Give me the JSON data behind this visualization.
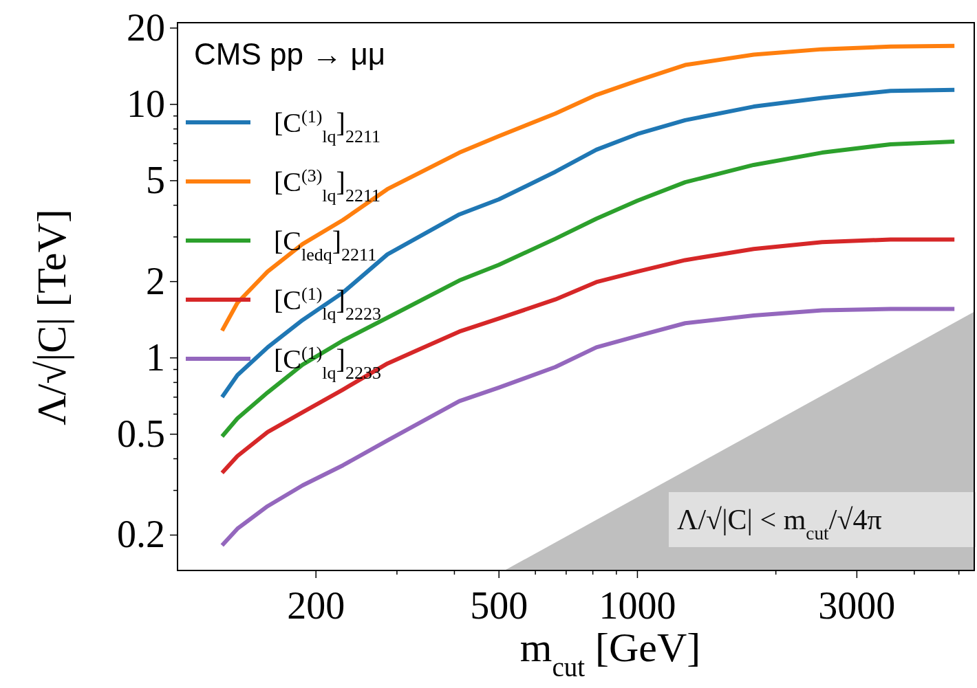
{
  "chart_data": {
    "type": "line",
    "title": "CMS pp → μμ",
    "xlabel": "m$_{cut}$ [GeV]",
    "ylabel": "Λ/√|C| [TeV]",
    "log": "xy",
    "xlim": [
      100,
      5400
    ],
    "ylim": [
      0.145,
      21
    ],
    "xticks": [
      200,
      500,
      1000,
      3000,
      {
        "value": 300,
        "label": null
      },
      {
        "value": 400,
        "label": null
      },
      {
        "value": 600,
        "label": null
      },
      {
        "value": 700,
        "label": null
      },
      {
        "value": 800,
        "label": null
      },
      {
        "value": 900,
        "label": null
      },
      {
        "value": 2000,
        "label": null
      },
      {
        "value": 4000,
        "label": null
      },
      {
        "value": 5000,
        "label": null
      }
    ],
    "yticks": [
      0.2,
      0.5,
      1,
      2,
      5,
      10,
      20,
      {
        "value": 0.3,
        "label": null
      },
      {
        "value": 0.4,
        "label": null
      },
      {
        "value": 0.6,
        "label": null
      },
      {
        "value": 0.7,
        "label": null
      },
      {
        "value": 0.8,
        "label": null
      },
      {
        "value": 0.9,
        "label": null
      },
      {
        "value": 3,
        "label": null
      },
      {
        "value": 4,
        "label": null
      },
      {
        "value": 6,
        "label": null
      },
      {
        "value": 7,
        "label": null
      },
      {
        "value": 8,
        "label": null
      },
      {
        "value": 9,
        "label": null
      }
    ],
    "x": [
      125,
      135,
      157,
      187,
      229,
      286,
      410,
      500,
      663,
      814,
      1000,
      1270,
      1790,
      2520,
      3550,
      4890
    ],
    "legend": "left",
    "grid": false,
    "marker": "none",
    "line_style": "solid",
    "series": [
      {
        "type": "area",
        "color": "#bfbfbf",
        "x": [
          514,
          5400
        ],
        "values": [
          0.145,
          1.52
        ]
      },
      {
        "name": "[C$^{(1)}$$_{lq}$]$_{2211}$",
        "color": "#1f77b4",
        "values": [
          0.7,
          0.855,
          1.1,
          1.41,
          1.81,
          2.56,
          3.68,
          4.22,
          5.42,
          6.62,
          7.64,
          8.66,
          9.8,
          10.6,
          11.3,
          11.4
        ]
      },
      {
        "name": "[C$^{(3)}$$_{lq}$]$_{2211}$",
        "color": "#ff7f0e",
        "values": [
          1.28,
          1.65,
          2.19,
          2.81,
          3.5,
          4.63,
          6.45,
          7.5,
          9.2,
          10.9,
          12.4,
          14.3,
          15.7,
          16.5,
          16.9,
          17.0
        ]
      },
      {
        "name": "[C$_{ledq}$]$_{2211}$",
        "color": "#2ca02c",
        "values": [
          0.49,
          0.577,
          0.73,
          0.94,
          1.17,
          1.44,
          2.02,
          2.33,
          2.95,
          3.54,
          4.17,
          4.93,
          5.77,
          6.45,
          6.96,
          7.13
        ]
      },
      {
        "name": "[C$^{(1)}$$_{lq}$]$_{2223}$",
        "color": "#d62728",
        "values": [
          0.352,
          0.41,
          0.51,
          0.61,
          0.75,
          0.95,
          1.27,
          1.43,
          1.7,
          1.99,
          2.19,
          2.43,
          2.69,
          2.86,
          2.93,
          2.93
        ]
      },
      {
        "name": "[C$^{(1)}$$_{lq}$]$_{2233}$",
        "color": "#9467bd",
        "values": [
          0.182,
          0.212,
          0.26,
          0.314,
          0.377,
          0.472,
          0.675,
          0.764,
          0.92,
          1.1,
          1.22,
          1.37,
          1.47,
          1.54,
          1.56,
          1.56
        ]
      }
    ],
    "annotations": [
      "Λ/√|C| < m$_{cut}$/√4π"
    ]
  }
}
